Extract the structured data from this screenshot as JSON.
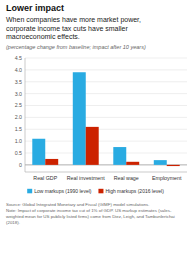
{
  "chart_data": {
    "type": "bar",
    "title": "Lower impact",
    "subtitle": "When companies have more market power,\ncorporate income tax cuts have smaller\nmacroeconomic effects.",
    "annotations": [
      "(percentage change from baseline; impact after 10 years)",
      "Source: Global Integrated Monetary and Fiscal (GIMF) model simulations.\nNote: Impact of corporate income tax cut of 1% of GDP. US markup estimates (sales-\nweighted mean for US publicly listed firms) come from Diez, Leigh, and Tambunlertchai\n(2018)."
    ],
    "categories": [
      "Real GDP",
      "Real investment",
      "Real wage",
      "Employment"
    ],
    "series": [
      {
        "name": "Low markups (1990 level)",
        "color": "#29ABE2",
        "values": [
          1.1,
          3.9,
          0.75,
          0.2
        ]
      },
      {
        "name": "High markups (2016 level)",
        "color": "#CC2200",
        "values": [
          0.25,
          1.6,
          0.13,
          -0.05
        ]
      }
    ],
    "ylim": [
      -0.3,
      4.5
    ],
    "yticks": [
      0,
      0.5,
      {
        "value": 1,
        "label": "1.0"
      },
      1.5,
      {
        "value": 2,
        "label": "2.0"
      },
      2.5,
      {
        "value": 3,
        "label": "3.0"
      },
      3.5,
      {
        "value": 4,
        "label": "4.0"
      },
      4.5
    ],
    "grid": true,
    "legend": "bottom"
  }
}
